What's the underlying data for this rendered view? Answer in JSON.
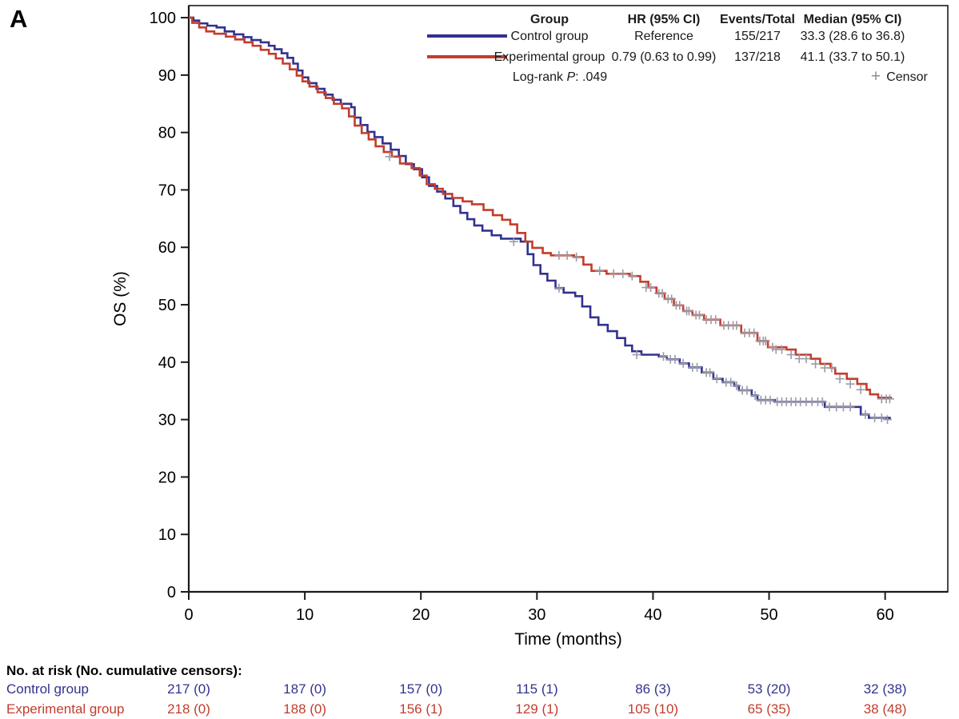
{
  "panel_label": "A",
  "colors": {
    "control": "#32328F",
    "experimental": "#C23D2D",
    "censor": "#9A9AA6",
    "axis": "#1a1a1a",
    "text": "#1a1a1a"
  },
  "legend": {
    "headers": [
      "Group",
      "HR (95% CI)",
      "Events/Total",
      "Median (95% CI)"
    ],
    "rows": [
      {
        "group": "Control group",
        "hr": "Reference",
        "events_total": "155/217",
        "median": "33.3 (28.6 to 36.8)",
        "color_key": "control"
      },
      {
        "group": "Experimental group",
        "hr": "0.79 (0.63 to 0.99)",
        "events_total": "137/218",
        "median": "41.1 (33.7 to 50.1)",
        "color_key": "experimental"
      }
    ],
    "logrank_prefix": "Log-rank ",
    "logrank_stat": "P",
    "logrank_rest": ": .049",
    "censor_symbol": "+",
    "censor_label": "Censor"
  },
  "chart_data": {
    "type": "line",
    "subtype": "kaplan-meier-step",
    "title": "",
    "xlabel": "Time (months)",
    "ylabel": "OS (%)",
    "xlim": [
      0,
      65.4
    ],
    "ylim": [
      0,
      102.1
    ],
    "xticks": [
      0,
      10,
      20,
      30,
      40,
      50,
      60
    ],
    "yticks": [
      0,
      10,
      20,
      30,
      40,
      50,
      60,
      70,
      80,
      90,
      100
    ],
    "grid": false,
    "legend_position": "top-right",
    "series": [
      {
        "name": "Control group",
        "color_key": "control",
        "step_points": [
          [
            0,
            100
          ],
          [
            0.4,
            99.5
          ],
          [
            0.9,
            99
          ],
          [
            1.6,
            98.6
          ],
          [
            2.4,
            98.3
          ],
          [
            3.1,
            97.6
          ],
          [
            3.9,
            97.1
          ],
          [
            4.7,
            96.6
          ],
          [
            5.4,
            96.1
          ],
          [
            6.2,
            95.7
          ],
          [
            6.9,
            95.1
          ],
          [
            7.4,
            94.5
          ],
          [
            8,
            93.8
          ],
          [
            8.5,
            93
          ],
          [
            9,
            92
          ],
          [
            9.4,
            90.8
          ],
          [
            9.8,
            89.6
          ],
          [
            10.3,
            88.6
          ],
          [
            11,
            87.6
          ],
          [
            11.7,
            86.6
          ],
          [
            12.4,
            85.7
          ],
          [
            13.1,
            85
          ],
          [
            14,
            84.4
          ],
          [
            14.3,
            82.6
          ],
          [
            14.8,
            81.3
          ],
          [
            15.4,
            80.1
          ],
          [
            16,
            79.2
          ],
          [
            16.7,
            78.1
          ],
          [
            17.4,
            77
          ],
          [
            18.1,
            75.9
          ],
          [
            18.7,
            74.5
          ],
          [
            19.4,
            73.6
          ],
          [
            20.1,
            72.2
          ],
          [
            20.7,
            70.7
          ],
          [
            21.4,
            69.7
          ],
          [
            22.1,
            68.5
          ],
          [
            22.8,
            67.2
          ],
          [
            23.4,
            66
          ],
          [
            24,
            64.9
          ],
          [
            24.6,
            63.8
          ],
          [
            25.3,
            62.9
          ],
          [
            26.1,
            62.1
          ],
          [
            26.9,
            61.5
          ],
          [
            28.6,
            61
          ],
          [
            29.2,
            58.8
          ],
          [
            29.7,
            56.9
          ],
          [
            30.3,
            55.4
          ],
          [
            30.9,
            54.2
          ],
          [
            31.6,
            52.9
          ],
          [
            32.3,
            52.1
          ],
          [
            33.3,
            51.5
          ],
          [
            33.9,
            49.7
          ],
          [
            34.6,
            47.8
          ],
          [
            35.3,
            46.5
          ],
          [
            36.1,
            45.4
          ],
          [
            36.9,
            44.2
          ],
          [
            37.6,
            42.9
          ],
          [
            38.2,
            41.9
          ],
          [
            39,
            41.3
          ],
          [
            40.5,
            41
          ],
          [
            41.2,
            40.5
          ],
          [
            42.3,
            39.8
          ],
          [
            43.1,
            39.1
          ],
          [
            44.2,
            38.2
          ],
          [
            45.2,
            37.1
          ],
          [
            46,
            36.5
          ],
          [
            47,
            35.9
          ],
          [
            47.4,
            35.1
          ],
          [
            48.5,
            34.2
          ],
          [
            49,
            33.4
          ],
          [
            50.5,
            33.1
          ],
          [
            54.8,
            32.2
          ],
          [
            57.9,
            30.9
          ],
          [
            58.6,
            30.3
          ],
          [
            60.4,
            30
          ]
        ],
        "censors": [
          [
            28,
            61
          ],
          [
            31.9,
            52.9
          ],
          [
            38.6,
            41.3
          ],
          [
            40.9,
            41
          ],
          [
            41.5,
            40.5
          ],
          [
            41.9,
            40.5
          ],
          [
            42.6,
            39.8
          ],
          [
            43.4,
            39.1
          ],
          [
            43.8,
            39.1
          ],
          [
            44.6,
            38.2
          ],
          [
            44.9,
            38.2
          ],
          [
            45.5,
            37.1
          ],
          [
            46.3,
            36.5
          ],
          [
            46.7,
            36.5
          ],
          [
            47.2,
            35.9
          ],
          [
            47.7,
            35.1
          ],
          [
            48.1,
            35.1
          ],
          [
            48.8,
            34.2
          ],
          [
            49.3,
            33.4
          ],
          [
            49.7,
            33.4
          ],
          [
            50.1,
            33.4
          ],
          [
            50.7,
            33.1
          ],
          [
            51.1,
            33.1
          ],
          [
            51.5,
            33.1
          ],
          [
            51.9,
            33.1
          ],
          [
            52.3,
            33.1
          ],
          [
            52.7,
            33.1
          ],
          [
            53.2,
            33.1
          ],
          [
            53.7,
            33.1
          ],
          [
            54.2,
            33.1
          ],
          [
            54.6,
            33.1
          ],
          [
            55.2,
            32.2
          ],
          [
            55.8,
            32.2
          ],
          [
            56.4,
            32.2
          ],
          [
            57,
            32.2
          ],
          [
            58.3,
            30.9
          ],
          [
            59.1,
            30.3
          ],
          [
            59.7,
            30.3
          ],
          [
            60.2,
            30
          ]
        ]
      },
      {
        "name": "Experimental group",
        "color_key": "experimental",
        "step_points": [
          [
            0,
            100
          ],
          [
            0.3,
            99.1
          ],
          [
            0.9,
            98.3
          ],
          [
            1.5,
            97.6
          ],
          [
            2.2,
            97.2
          ],
          [
            3.2,
            96.7
          ],
          [
            4,
            96.2
          ],
          [
            4.8,
            95.7
          ],
          [
            5.5,
            95.1
          ],
          [
            6.2,
            94.4
          ],
          [
            6.9,
            93.7
          ],
          [
            7.5,
            92.9
          ],
          [
            8.1,
            92
          ],
          [
            8.7,
            91
          ],
          [
            9.3,
            89.9
          ],
          [
            9.8,
            88.9
          ],
          [
            10.4,
            88
          ],
          [
            11.1,
            87
          ],
          [
            11.8,
            86
          ],
          [
            12.5,
            85
          ],
          [
            13.2,
            84.2
          ],
          [
            13.8,
            82.8
          ],
          [
            14.3,
            81.2
          ],
          [
            14.9,
            79.9
          ],
          [
            15.5,
            78.8
          ],
          [
            16.1,
            77.6
          ],
          [
            16.8,
            76.6
          ],
          [
            17.5,
            75.8
          ],
          [
            18.2,
            74.6
          ],
          [
            19.2,
            73.8
          ],
          [
            19.9,
            72.5
          ],
          [
            20.5,
            71
          ],
          [
            21.2,
            70.2
          ],
          [
            21.9,
            69.3
          ],
          [
            22.7,
            68.6
          ],
          [
            23.6,
            68
          ],
          [
            24.4,
            67.5
          ],
          [
            25.4,
            66.5
          ],
          [
            26.2,
            65.6
          ],
          [
            27,
            64.8
          ],
          [
            27.7,
            64
          ],
          [
            28.3,
            62.5
          ],
          [
            29,
            61
          ],
          [
            29.6,
            59.9
          ],
          [
            30.5,
            59
          ],
          [
            31.2,
            58.6
          ],
          [
            33.2,
            58.3
          ],
          [
            34,
            57
          ],
          [
            34.7,
            55.9
          ],
          [
            36,
            55.4
          ],
          [
            38,
            55
          ],
          [
            38.9,
            54
          ],
          [
            39.6,
            53
          ],
          [
            40.3,
            52
          ],
          [
            41,
            51
          ],
          [
            41.8,
            49.9
          ],
          [
            42.6,
            48.9
          ],
          [
            43.4,
            48.2
          ],
          [
            44.4,
            47.4
          ],
          [
            45.8,
            46.4
          ],
          [
            47.6,
            45.1
          ],
          [
            49,
            43.7
          ],
          [
            49.9,
            42.6
          ],
          [
            51.5,
            42.2
          ],
          [
            52.3,
            41.3
          ],
          [
            53.6,
            40.6
          ],
          [
            54.4,
            39.7
          ],
          [
            55.3,
            39
          ],
          [
            55.7,
            38
          ],
          [
            56.7,
            37.1
          ],
          [
            57.6,
            36.2
          ],
          [
            58.4,
            35.2
          ],
          [
            58.7,
            34.4
          ],
          [
            59.4,
            33.8
          ],
          [
            60.5,
            33.6
          ]
        ],
        "censors": [
          [
            17.3,
            75.8
          ],
          [
            31.9,
            58.6
          ],
          [
            32.6,
            58.6
          ],
          [
            33.4,
            58.3
          ],
          [
            35.4,
            55.9
          ],
          [
            36.6,
            55.4
          ],
          [
            37.4,
            55.4
          ],
          [
            38.2,
            55
          ],
          [
            39.4,
            53
          ],
          [
            39.8,
            53
          ],
          [
            40.5,
            52
          ],
          [
            40.8,
            52
          ],
          [
            41.3,
            51
          ],
          [
            41.6,
            51
          ],
          [
            42,
            49.9
          ],
          [
            42.3,
            49.9
          ],
          [
            42.9,
            48.9
          ],
          [
            43.1,
            48.9
          ],
          [
            43.7,
            48.2
          ],
          [
            44,
            48.2
          ],
          [
            44.6,
            47.4
          ],
          [
            45,
            47.4
          ],
          [
            45.4,
            47.4
          ],
          [
            46.1,
            46.4
          ],
          [
            46.5,
            46.4
          ],
          [
            46.9,
            46.4
          ],
          [
            47.2,
            46.4
          ],
          [
            47.9,
            45.1
          ],
          [
            48.3,
            45.1
          ],
          [
            48.7,
            45.1
          ],
          [
            49.2,
            43.7
          ],
          [
            49.5,
            43.7
          ],
          [
            49.7,
            43.7
          ],
          [
            50.3,
            42.6
          ],
          [
            50.6,
            42.2
          ],
          [
            51.1,
            42.2
          ],
          [
            51.9,
            41.3
          ],
          [
            52.6,
            40.6
          ],
          [
            53.2,
            40.6
          ],
          [
            54,
            39.7
          ],
          [
            54.8,
            39
          ],
          [
            55.4,
            39
          ],
          [
            56.1,
            37.1
          ],
          [
            57,
            36.2
          ],
          [
            57.9,
            35.2
          ],
          [
            59.7,
            33.6
          ],
          [
            60.1,
            33.6
          ],
          [
            60.4,
            33.6
          ]
        ]
      }
    ]
  },
  "risk_table": {
    "title": "No. at risk (No. cumulative censors):",
    "time_points": [
      0,
      10,
      20,
      30,
      40,
      50,
      60
    ],
    "rows": [
      {
        "label": "Control group",
        "color_key": "control",
        "values": [
          "217 (0)",
          "187 (0)",
          "157 (0)",
          "115 (1)",
          "86 (3)",
          "53 (20)",
          "32 (38)"
        ]
      },
      {
        "label": "Experimental group",
        "color_key": "experimental",
        "values": [
          "218 (0)",
          "188 (0)",
          "156 (1)",
          "129 (1)",
          "105 (10)",
          "65 (35)",
          "38 (48)"
        ]
      }
    ]
  }
}
